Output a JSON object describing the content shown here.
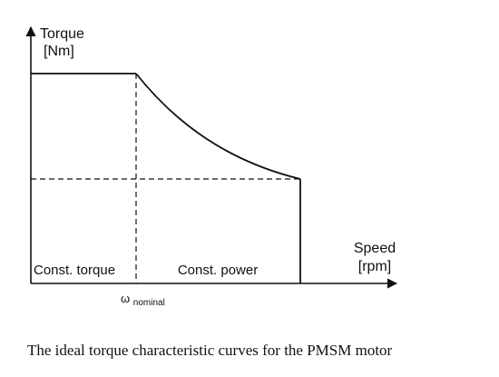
{
  "diagram": {
    "y_axis": {
      "label_line1": "Torque",
      "label_line2": "[Nm]"
    },
    "x_axis": {
      "label_line1": "Speed",
      "label_line2": "[rpm]"
    },
    "marker": {
      "symbol": "ω",
      "subscript": "nominal"
    },
    "regions": {
      "left": "Const. torque",
      "right": "Const. power"
    }
  },
  "caption": "The ideal torque characteristic curves for  the PMSM motor"
}
